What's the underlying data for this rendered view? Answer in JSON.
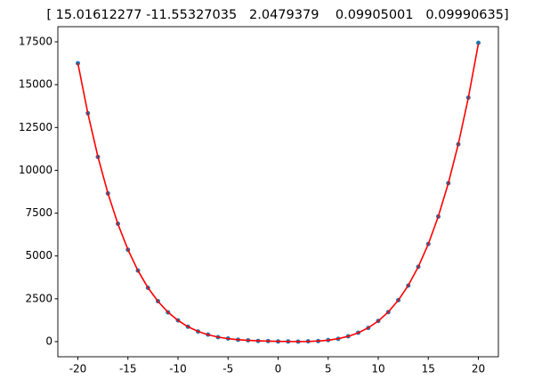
{
  "chart_data": {
    "type": "scatter",
    "title": "[ 15.01612277 -11.55327035   2.0479379    0.09905001   0.09990635]",
    "x": [
      -20,
      -19,
      -18,
      -17,
      -16,
      -15,
      -14,
      -13,
      -12,
      -11,
      -10,
      -9,
      -8,
      -7,
      -6,
      -5,
      -4,
      -3,
      -2,
      -1,
      0,
      1,
      2,
      3,
      4,
      5,
      6,
      7,
      8,
      9,
      10,
      11,
      12,
      13,
      14,
      15,
      16,
      17,
      18,
      19,
      20
    ],
    "series": [
      {
        "type": "scatter",
        "color": "#1f77b4",
        "values": [
          16250,
          13330,
          10780,
          8650,
          6880,
          5360,
          4150,
          3140,
          2360,
          1710,
          1240,
          870,
          590,
          410,
          260,
          180,
          110,
          80,
          40,
          30,
          10,
          10,
          0,
          20,
          30,
          90,
          160,
          310,
          520,
          800,
          1210,
          1720,
          2420,
          3270,
          4370,
          5700,
          7300,
          9250,
          11520,
          14240,
          17440
        ]
      },
      {
        "type": "line",
        "color": "#ff0000",
        "values": [
          16258,
          13314,
          10796,
          8660,
          6865,
          5372,
          4144,
          3147,
          2349,
          1721,
          1235,
          868,
          597,
          402,
          266,
          174,
          113,
          74,
          47,
          29,
          15,
          6,
          3,
          10,
          34,
          83,
          170,
          308,
          514,
          805,
          1202,
          1730,
          2414,
          3282,
          4364,
          5694,
          7307,
          9241,
          11535,
          14234,
          17381
        ]
      }
    ],
    "xlim": [
      -22,
      22
    ],
    "ylim": [
      -883,
      18383
    ],
    "xticks": [
      -20,
      -15,
      -10,
      -5,
      0,
      5,
      10,
      15,
      20
    ],
    "yticks": [
      0,
      2500,
      5000,
      7500,
      10000,
      12500,
      15000,
      17500
    ]
  }
}
